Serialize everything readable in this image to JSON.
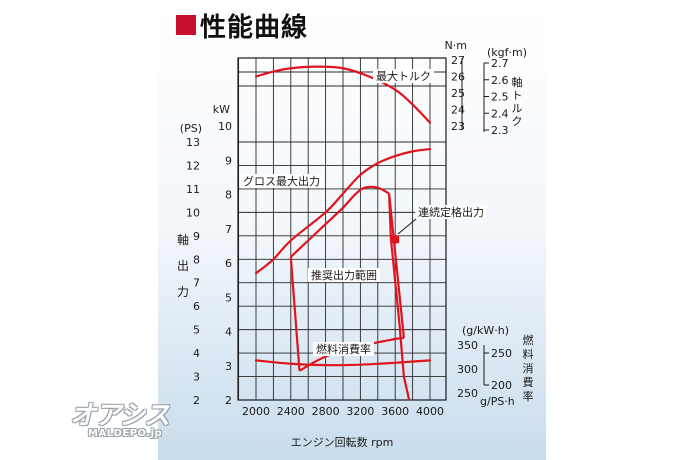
{
  "title": "性能曲線",
  "watermark": {
    "logo": "オアシス",
    "site": "MALDEPO.jp"
  },
  "chart_data": {
    "type": "line",
    "xlabel": "エンジン回転数 rpm",
    "x_ticks": [
      "2000",
      "2400",
      "2800",
      "3200",
      "3600",
      "4000"
    ],
    "xlim": [
      1800,
      4200
    ],
    "grid": true,
    "axes": {
      "ps": {
        "unit": "(PS)",
        "ticks": [
          "2",
          "3",
          "4",
          "5",
          "6",
          "7",
          "8",
          "9",
          "10",
          "11",
          "12",
          "13"
        ],
        "range": [
          2,
          13
        ]
      },
      "kw": {
        "unit": "kW",
        "ticks": [
          "2",
          "3",
          "4",
          "5",
          "6",
          "7",
          "8",
          "9",
          "10"
        ]
      },
      "nm": {
        "unit": "N·m",
        "ticks": [
          "23",
          "24",
          "25",
          "26",
          "27"
        ]
      },
      "kgfm": {
        "unit": "(kgf·m)",
        "ticks": [
          "2.3",
          "2.4",
          "2.5",
          "2.6",
          "2.7"
        ]
      },
      "shaft_output_label": [
        "軸",
        "出",
        "力"
      ],
      "shaft_torque_label": [
        "軸",
        "ト",
        "ル",
        "ク"
      ],
      "fuel_gkwh": {
        "unit": "(g/kW·h)",
        "ticks": [
          "350",
          "300",
          "250"
        ]
      },
      "fuel_gpsh": {
        "unit": "g/PS·h",
        "ticks": [
          "250",
          "200"
        ]
      },
      "fuel_label": [
        "燃",
        "料",
        "消",
        "費",
        "率"
      ]
    },
    "annotations": {
      "max_torque": "最大トルク",
      "gross_max_output": "グロス最大出力",
      "continuous_rated_output": "連続定格出力",
      "recommended_range": "推奨出力範囲",
      "fuel_consumption": "燃料消費率"
    },
    "series": [
      {
        "name": "最大トルク",
        "axis": "nm",
        "points": [
          [
            2000,
            26.0
          ],
          [
            2200,
            26.3
          ],
          [
            2400,
            26.5
          ],
          [
            2700,
            26.6
          ],
          [
            3000,
            26.5
          ],
          [
            3300,
            26.0
          ],
          [
            3600,
            25.2
          ],
          [
            3800,
            24.3
          ],
          [
            4000,
            23.2
          ]
        ]
      },
      {
        "name": "グロス最大出力",
        "axis": "ps",
        "points": [
          [
            2000,
            7.4
          ],
          [
            2200,
            8.0
          ],
          [
            2400,
            8.8
          ],
          [
            2800,
            10.0
          ],
          [
            3000,
            10.8
          ],
          [
            3200,
            11.6
          ],
          [
            3400,
            12.1
          ],
          [
            3600,
            12.4
          ],
          [
            3800,
            12.6
          ],
          [
            4000,
            12.7
          ]
        ]
      },
      {
        "name": "連続定格出力",
        "axis": "ps",
        "points": [
          [
            3600,
            8.85
          ]
        ]
      },
      {
        "name": "燃料消費率",
        "axis": "fuel_gkwh",
        "points": [
          [
            2000,
            318
          ],
          [
            2400,
            311
          ],
          [
            2800,
            308
          ],
          [
            3200,
            309
          ],
          [
            3600,
            313
          ],
          [
            4000,
            318
          ]
        ]
      }
    ],
    "recommended_range_outline": {
      "axis": "ps",
      "points": [
        [
          2400,
          8.1
        ],
        [
          2600,
          8.8
        ],
        [
          2800,
          9.5
        ],
        [
          3000,
          10.2
        ],
        [
          3150,
          10.8
        ],
        [
          3250,
          11.05
        ],
        [
          3400,
          11.05
        ],
        [
          3530,
          10.8
        ],
        [
          3550,
          8.9
        ],
        [
          3650,
          5.2
        ],
        [
          3700,
          3.0
        ],
        [
          3760,
          2.0
        ]
      ],
      "lower_points": [
        [
          2400,
          8.1
        ],
        [
          2500,
          3.25
        ],
        [
          2800,
          3.85
        ],
        [
          3200,
          4.3
        ],
        [
          3600,
          4.6
        ],
        [
          3700,
          4.65
        ],
        [
          3530,
          10.8
        ]
      ]
    }
  }
}
